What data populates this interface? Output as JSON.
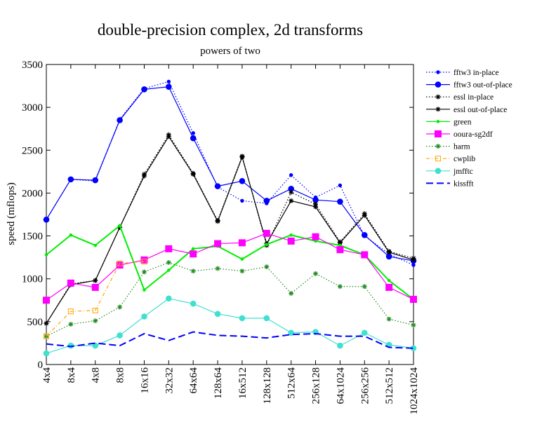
{
  "chart_data": {
    "type": "line",
    "title": "double-precision complex, 2d transforms",
    "subtitle": "powers of two",
    "xlabel": "",
    "ylabel": "speed (mflops)",
    "ylim": [
      0,
      3500
    ],
    "yticks": [
      0,
      500,
      1000,
      1500,
      2000,
      2500,
      3000,
      3500
    ],
    "grid": false,
    "legend_position": "right",
    "categories": [
      "4x4",
      "8x4",
      "4x8",
      "8x8",
      "16x16",
      "32x32",
      "64x64",
      "128x64",
      "16x512",
      "128x128",
      "512x64",
      "256x128",
      "64x1024",
      "256x256",
      "512x512",
      "1024x1024"
    ],
    "series": [
      {
        "name": "fftw3 in-place",
        "color": "#0000ff",
        "line": "dotted",
        "marker": "circle-small",
        "values": [
          1690,
          2160,
          2140,
          2860,
          3220,
          3300,
          2700,
          2070,
          1910,
          1880,
          2210,
          1950,
          2090,
          1500,
          1290,
          1160
        ]
      },
      {
        "name": "fftw3 out-of-place",
        "color": "#0000ff",
        "line": "solid",
        "marker": "circle",
        "values": [
          1690,
          2160,
          2150,
          2850,
          3210,
          3240,
          2640,
          2080,
          2140,
          1910,
          2050,
          1920,
          1900,
          1510,
          1260,
          1210
        ]
      },
      {
        "name": "essl in-place",
        "color": "#000000",
        "line": "dotted",
        "marker": "star",
        "values": [
          480,
          940,
          980,
          1600,
          2220,
          2680,
          2230,
          1680,
          2430,
          1390,
          2010,
          1870,
          1430,
          1760,
          1320,
          1240
        ]
      },
      {
        "name": "essl out-of-place",
        "color": "#000000",
        "line": "solid",
        "marker": "star",
        "values": [
          480,
          930,
          980,
          1600,
          2200,
          2660,
          2220,
          1670,
          2420,
          1410,
          1910,
          1840,
          1420,
          1740,
          1310,
          1220
        ]
      },
      {
        "name": "green",
        "color": "#00ee00",
        "line": "solid",
        "marker": "dot",
        "values": [
          1280,
          1510,
          1390,
          1620,
          870,
          1100,
          1350,
          1380,
          1230,
          1400,
          1510,
          1440,
          1390,
          1280,
          980,
          760
        ]
      },
      {
        "name": "ooura-sg2df",
        "color": "#ff00ff",
        "line": "solid",
        "marker": "square",
        "values": [
          750,
          950,
          900,
          1160,
          1220,
          1350,
          1290,
          1410,
          1420,
          1530,
          1440,
          1490,
          1340,
          1280,
          900,
          760
        ]
      },
      {
        "name": "harm",
        "color": "#228b22",
        "line": "dotted",
        "marker": "star",
        "values": [
          330,
          470,
          510,
          670,
          1080,
          1190,
          1090,
          1120,
          1090,
          1140,
          830,
          1060,
          910,
          910,
          530,
          460
        ]
      },
      {
        "name": "cwplib",
        "color": "#ffa500",
        "line": "dashdot",
        "marker": "square-open",
        "values": [
          330,
          620,
          630,
          1180,
          1200,
          null,
          null,
          null,
          null,
          null,
          null,
          null,
          null,
          null,
          null,
          null
        ]
      },
      {
        "name": "jmfftc",
        "color": "#40e0d0",
        "line": "solid",
        "marker": "circle",
        "values": [
          130,
          220,
          220,
          340,
          560,
          770,
          710,
          590,
          540,
          540,
          370,
          380,
          220,
          370,
          230,
          190
        ]
      },
      {
        "name": "kissfft",
        "color": "#0000ff",
        "line": "dashed",
        "marker": "none",
        "values": [
          240,
          210,
          250,
          220,
          360,
          280,
          380,
          340,
          330,
          310,
          350,
          360,
          330,
          330,
          200,
          190
        ]
      }
    ]
  }
}
